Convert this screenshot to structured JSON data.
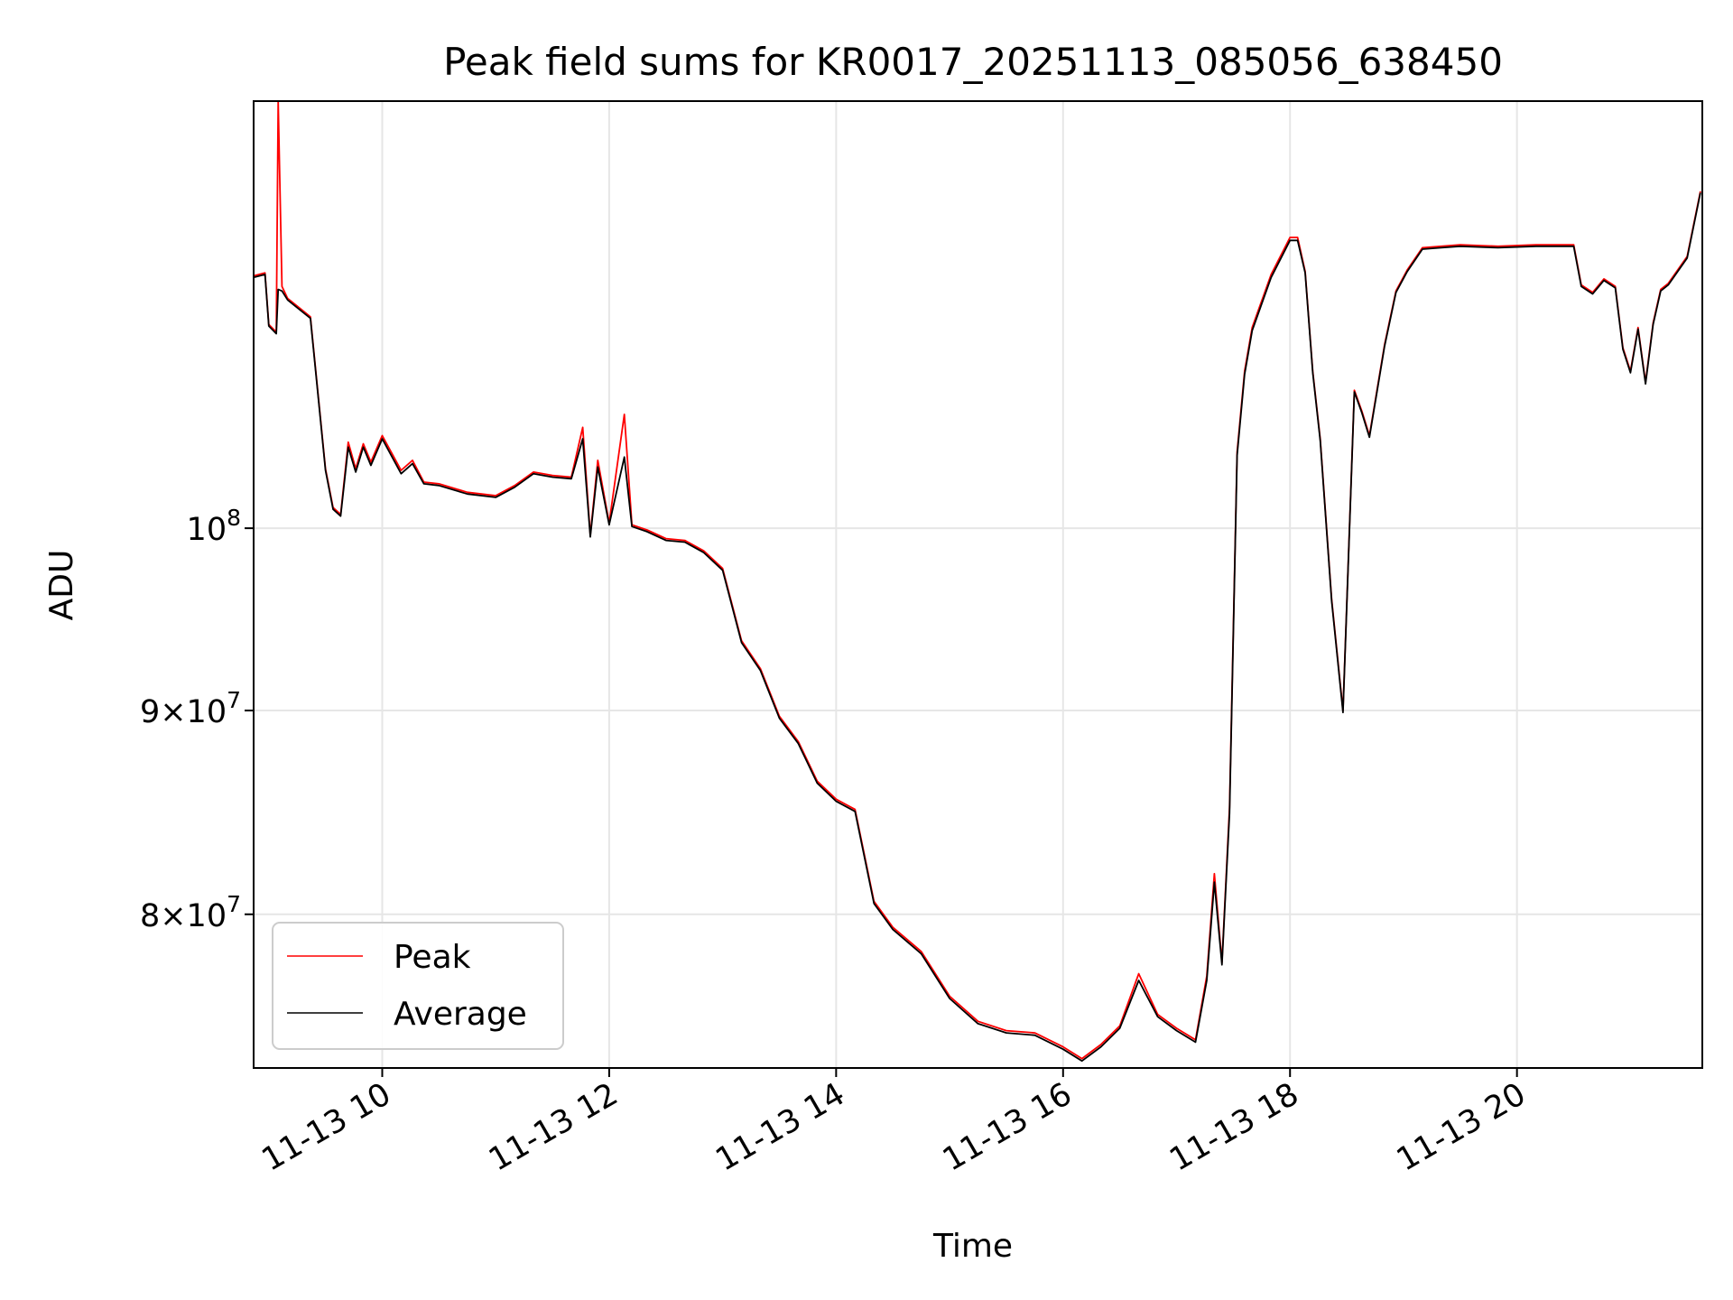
{
  "chart_data": {
    "type": "line",
    "title": "Peak field sums for KR0017_20251113_085056_638450",
    "xlabel": "Time",
    "ylabel": "ADU",
    "yscale": "log",
    "xlim": [
      "2025-11-13 08:52",
      "2025-11-13 21:38"
    ],
    "ylim": [
      73200000,
      128000000
    ],
    "grid": true,
    "legend_position": "lower-left",
    "x_ticks": [
      {
        "value": "2025-11-13 10:00",
        "label": "11-13 10"
      },
      {
        "value": "2025-11-13 12:00",
        "label": "11-13 12"
      },
      {
        "value": "2025-11-13 14:00",
        "label": "11-13 14"
      },
      {
        "value": "2025-11-13 16:00",
        "label": "11-13 16"
      },
      {
        "value": "2025-11-13 18:00",
        "label": "11-13 18"
      },
      {
        "value": "2025-11-13 20:00",
        "label": "11-13 20"
      }
    ],
    "y_ticks": [
      {
        "value": 80000000,
        "base": "8×10",
        "exp": "7"
      },
      {
        "value": 90000000,
        "base": "9×10",
        "exp": "7"
      },
      {
        "value": 100000000,
        "base": "10",
        "exp": "8"
      }
    ],
    "x": [
      "2025-11-13 08:52",
      "2025-11-13 08:58",
      "2025-11-13 09:00",
      "2025-11-13 09:04",
      "2025-11-13 09:05",
      "2025-11-13 09:07",
      "2025-11-13 09:10",
      "2025-11-13 09:16",
      "2025-11-13 09:22",
      "2025-11-13 09:30",
      "2025-11-13 09:34",
      "2025-11-13 09:38",
      "2025-11-13 09:42",
      "2025-11-13 09:46",
      "2025-11-13 09:50",
      "2025-11-13 09:54",
      "2025-11-13 10:00",
      "2025-11-13 10:10",
      "2025-11-13 10:16",
      "2025-11-13 10:22",
      "2025-11-13 10:30",
      "2025-11-13 10:45",
      "2025-11-13 11:00",
      "2025-11-13 11:10",
      "2025-11-13 11:20",
      "2025-11-13 11:30",
      "2025-11-13 11:40",
      "2025-11-13 11:46",
      "2025-11-13 11:50",
      "2025-11-13 11:54",
      "2025-11-13 12:00",
      "2025-11-13 12:08",
      "2025-11-13 12:12",
      "2025-11-13 12:20",
      "2025-11-13 12:30",
      "2025-11-13 12:40",
      "2025-11-13 12:50",
      "2025-11-13 13:00",
      "2025-11-13 13:10",
      "2025-11-13 13:20",
      "2025-11-13 13:30",
      "2025-11-13 13:40",
      "2025-11-13 13:50",
      "2025-11-13 14:00",
      "2025-11-13 14:10",
      "2025-11-13 14:20",
      "2025-11-13 14:30",
      "2025-11-13 14:45",
      "2025-11-13 15:00",
      "2025-11-13 15:15",
      "2025-11-13 15:30",
      "2025-11-13 15:45",
      "2025-11-13 16:00",
      "2025-11-13 16:10",
      "2025-11-13 16:20",
      "2025-11-13 16:30",
      "2025-11-13 16:40",
      "2025-11-13 16:50",
      "2025-11-13 17:00",
      "2025-11-13 17:10",
      "2025-11-13 17:16",
      "2025-11-13 17:20",
      "2025-11-13 17:24",
      "2025-11-13 17:28",
      "2025-11-13 17:32",
      "2025-11-13 17:36",
      "2025-11-13 17:40",
      "2025-11-13 17:50",
      "2025-11-13 18:00",
      "2025-11-13 18:04",
      "2025-11-13 18:08",
      "2025-11-13 18:12",
      "2025-11-13 18:16",
      "2025-11-13 18:22",
      "2025-11-13 18:28",
      "2025-11-13 18:34",
      "2025-11-13 18:38",
      "2025-11-13 18:42",
      "2025-11-13 18:50",
      "2025-11-13 18:56",
      "2025-11-13 19:02",
      "2025-11-13 19:10",
      "2025-11-13 19:20",
      "2025-11-13 19:30",
      "2025-11-13 19:50",
      "2025-11-13 20:10",
      "2025-11-13 20:30",
      "2025-11-13 20:34",
      "2025-11-13 20:40",
      "2025-11-13 20:46",
      "2025-11-13 20:52",
      "2025-11-13 20:56",
      "2025-11-13 21:00",
      "2025-11-13 21:04",
      "2025-11-13 21:08",
      "2025-11-13 21:12",
      "2025-11-13 21:16",
      "2025-11-13 21:20",
      "2025-11-13 21:30",
      "2025-11-13 21:37"
    ],
    "series": [
      {
        "name": "Peak",
        "color": "#ff0000",
        "values": [
          115700000,
          115900000,
          112500000,
          112000000,
          128000000,
          115000000,
          114200000,
          113600000,
          113000000,
          103500000,
          101200000,
          100800000,
          105100000,
          103500000,
          105000000,
          103900000,
          105500000,
          103400000,
          104000000,
          102700000,
          102600000,
          102100000,
          101900000,
          102500000,
          103300000,
          103100000,
          103000000,
          106000000,
          99600000,
          104000000,
          100300000,
          106800000,
          100200000,
          99900000,
          99400000,
          99300000,
          98700000,
          97700000,
          93700000,
          92200000,
          89700000,
          88400000,
          86400000,
          85500000,
          85000000,
          80600000,
          79400000,
          78300000,
          76300000,
          75200000,
          74800000,
          74700000,
          74100000,
          73600000,
          74200000,
          75000000,
          77300000,
          75500000,
          74900000,
          74400000,
          77200000,
          81900000,
          77800000,
          85100000,
          104500000,
          109500000,
          112300000,
          115800000,
          118300000,
          118300000,
          116000000,
          109500000,
          105300000,
          96000000,
          90000000,
          108300000,
          107000000,
          105500000,
          111200000,
          114700000,
          116100000,
          117600000,
          117700000,
          117800000,
          117700000,
          117800000,
          117800000,
          115100000,
          114600000,
          115500000,
          115000000,
          111000000,
          109500000,
          112300000,
          108800000,
          112600000,
          114800000,
          115200000,
          117000000,
          121500000
        ]
      },
      {
        "name": "Average",
        "color": "#000000",
        "values": [
          115600000,
          115800000,
          112400000,
          111900000,
          114800000,
          114700000,
          114100000,
          113500000,
          112900000,
          103400000,
          101100000,
          100700000,
          104800000,
          103300000,
          104800000,
          103700000,
          105300000,
          103200000,
          103800000,
          102600000,
          102500000,
          102000000,
          101800000,
          102400000,
          103200000,
          103000000,
          102900000,
          105300000,
          99500000,
          103600000,
          100200000,
          104200000,
          100100000,
          99800000,
          99300000,
          99200000,
          98600000,
          97600000,
          93600000,
          92100000,
          89600000,
          88300000,
          86300000,
          85400000,
          84900000,
          80500000,
          79300000,
          78200000,
          76200000,
          75100000,
          74700000,
          74600000,
          74000000,
          73500000,
          74100000,
          74900000,
          77000000,
          75400000,
          74800000,
          74300000,
          77000000,
          81500000,
          77700000,
          84800000,
          104300000,
          109300000,
          112100000,
          115600000,
          118100000,
          118100000,
          115900000,
          109400000,
          105200000,
          95900000,
          89900000,
          108200000,
          106900000,
          105400000,
          111100000,
          114600000,
          116000000,
          117500000,
          117600000,
          117700000,
          117600000,
          117700000,
          117700000,
          115000000,
          114500000,
          115400000,
          114900000,
          110900000,
          109400000,
          112200000,
          108700000,
          112500000,
          114700000,
          115100000,
          116900000,
          121400000
        ]
      }
    ]
  }
}
